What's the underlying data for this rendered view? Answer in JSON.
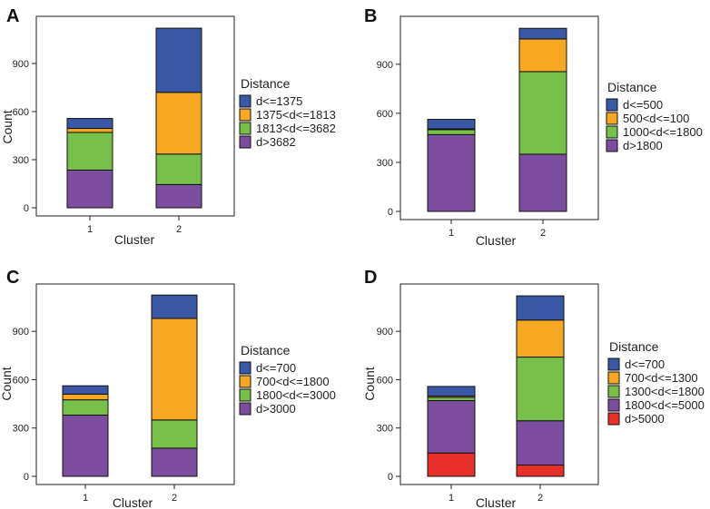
{
  "figure": {
    "colors": {
      "blue": "#3a58a6",
      "orange": "#f6a823",
      "green": "#77c04a",
      "purple": "#7d4e9f",
      "red": "#e8302a"
    }
  },
  "chart_data": [
    {
      "panel": "A",
      "type": "bar",
      "stacked": true,
      "categories": [
        "1",
        "2"
      ],
      "xlabel": "Cluster",
      "ylabel": "Count",
      "yticks": [
        0,
        300,
        600,
        900
      ],
      "ylim": [
        0,
        1160
      ],
      "legend_title": "Distance",
      "series": [
        {
          "name": "d>3682",
          "color": "#7d4e9f",
          "values": [
            235,
            145
          ]
        },
        {
          "name": "1813<d<=3682",
          "color": "#77c04a",
          "values": [
            235,
            190
          ]
        },
        {
          "name": "1375<d<=1813",
          "color": "#f6a823",
          "values": [
            25,
            385
          ]
        },
        {
          "name": "d<=1375",
          "color": "#3a58a6",
          "values": [
            62,
            400
          ]
        }
      ]
    },
    {
      "panel": "B",
      "type": "bar",
      "stacked": true,
      "categories": [
        "1",
        "2"
      ],
      "xlabel": "Cluster",
      "ylabel": "",
      "yticks": [
        0,
        300,
        600,
        900
      ],
      "ylim": [
        0,
        1160
      ],
      "legend_title": "Distance",
      "series": [
        {
          "name": "d>1800",
          "color": "#7d4e9f",
          "values": [
            470,
            350
          ]
        },
        {
          "name": "1000<d<=1800",
          "color": "#77c04a",
          "values": [
            30,
            505
          ]
        },
        {
          "name": "500<d<=100",
          "color": "#f6a823",
          "values": [
            5,
            200
          ]
        },
        {
          "name": "d<=500",
          "color": "#3a58a6",
          "values": [
            58,
            65
          ]
        }
      ]
    },
    {
      "panel": "C",
      "type": "bar",
      "stacked": true,
      "categories": [
        "1",
        "2"
      ],
      "xlabel": "Cluster",
      "ylabel": "Count",
      "yticks": [
        0,
        300,
        600,
        900
      ],
      "ylim": [
        0,
        1160
      ],
      "legend_title": "Distance",
      "series": [
        {
          "name": "d>3000",
          "color": "#7d4e9f",
          "values": [
            380,
            175
          ]
        },
        {
          "name": "1800<d<=3000",
          "color": "#77c04a",
          "values": [
            95,
            175
          ]
        },
        {
          "name": "700<d<=1800",
          "color": "#f6a823",
          "values": [
            35,
            630
          ]
        },
        {
          "name": "d<=700",
          "color": "#3a58a6",
          "values": [
            52,
            145
          ]
        }
      ]
    },
    {
      "panel": "D",
      "type": "bar",
      "stacked": true,
      "categories": [
        "1",
        "2"
      ],
      "xlabel": "Cluster",
      "ylabel": "Count",
      "yticks": [
        0,
        300,
        600,
        900
      ],
      "ylim": [
        0,
        1160
      ],
      "legend_title": "Distance",
      "series": [
        {
          "name": "d>5000",
          "color": "#e8302a",
          "values": [
            145,
            70
          ]
        },
        {
          "name": "1800<d<=5000",
          "color": "#7d4e9f",
          "values": [
            325,
            275
          ]
        },
        {
          "name": "1300<d<=1800",
          "color": "#77c04a",
          "values": [
            20,
            395
          ]
        },
        {
          "name": "700<d<=1300",
          "color": "#f6a823",
          "values": [
            8,
            230
          ]
        },
        {
          "name": "d<=700",
          "color": "#3a58a6",
          "values": [
            60,
            150
          ]
        }
      ]
    }
  ]
}
